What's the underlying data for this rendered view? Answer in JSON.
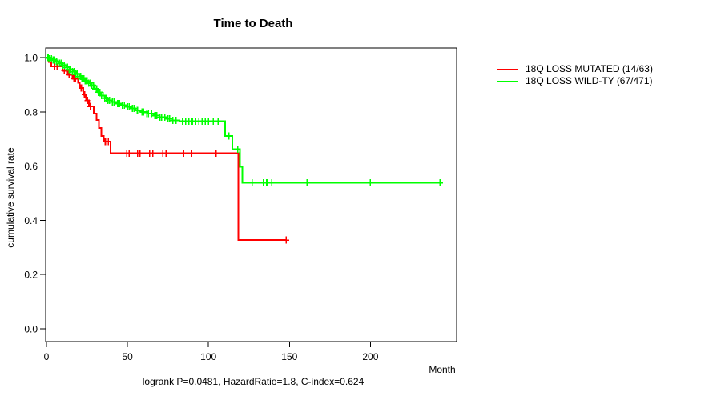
{
  "chart_data": {
    "type": "line",
    "subtype": "kaplan-meier-step",
    "title": "Time to Death",
    "xlabel": "Month",
    "ylabel": "cumulative survival rate",
    "footer": "logrank P=0.0481, HazardRatio=1.8, C-index=0.624",
    "x_ticks": [
      0,
      50,
      100,
      150,
      200
    ],
    "y_ticks": [
      "0.0",
      "0.2",
      "0.4",
      "0.6",
      "0.8",
      "1.0"
    ],
    "xlim": [
      0,
      253
    ],
    "ylim": [
      0.0,
      1.0
    ],
    "grid": false,
    "legend_position": "right-outside",
    "background": "#ffffff",
    "axis_color": "#000000",
    "series": [
      {
        "name": "18Q LOSS MUTATED (14/63)",
        "color": "#ff0000",
        "events_total": "14/63",
        "steps": [
          [
            0,
            1.0
          ],
          [
            1.5,
            0.984
          ],
          [
            3,
            0.968
          ],
          [
            10,
            0.952
          ],
          [
            13,
            0.937
          ],
          [
            16,
            0.922
          ],
          [
            19.5,
            0.907
          ],
          [
            20.5,
            0.888
          ],
          [
            22.8,
            0.863
          ],
          [
            24.6,
            0.842
          ],
          [
            26.2,
            0.82
          ],
          [
            29.3,
            0.794
          ],
          [
            30.8,
            0.77
          ],
          [
            32.4,
            0.74
          ],
          [
            34,
            0.711
          ],
          [
            35.3,
            0.69
          ],
          [
            39.5,
            0.648
          ],
          [
            118.5,
            0.327
          ]
        ],
        "end_month": 148,
        "censor_months": [
          5,
          6.5,
          11,
          14,
          17,
          18,
          21.5,
          23.5,
          25.3,
          27,
          36.3,
          37.3,
          38.3,
          49.5,
          51,
          56.3,
          57.8,
          63.6,
          65.6,
          71.8,
          73.8,
          84.6,
          89.5,
          104.8,
          148
        ]
      },
      {
        "name": "18Q LOSS WILD-TY (67/471)",
        "color": "#00ff00",
        "events_total": "67/471",
        "steps": [
          [
            0,
            1.0
          ],
          [
            2,
            0.996
          ],
          [
            4,
            0.991
          ],
          [
            6,
            0.985
          ],
          [
            8,
            0.979
          ],
          [
            10,
            0.972
          ],
          [
            12,
            0.964
          ],
          [
            14,
            0.956
          ],
          [
            16,
            0.948
          ],
          [
            18,
            0.939
          ],
          [
            20,
            0.93
          ],
          [
            22,
            0.922
          ],
          [
            24,
            0.914
          ],
          [
            26,
            0.906
          ],
          [
            28,
            0.898
          ],
          [
            30,
            0.885
          ],
          [
            32,
            0.872
          ],
          [
            34,
            0.86
          ],
          [
            36,
            0.85
          ],
          [
            38,
            0.842
          ],
          [
            40,
            0.836
          ],
          [
            43,
            0.83
          ],
          [
            46,
            0.824
          ],
          [
            49,
            0.818
          ],
          [
            52,
            0.812
          ],
          [
            55,
            0.806
          ],
          [
            58,
            0.8
          ],
          [
            62,
            0.793
          ],
          [
            66,
            0.786
          ],
          [
            70,
            0.78
          ],
          [
            74,
            0.774
          ],
          [
            78,
            0.768
          ],
          [
            82,
            0.765
          ],
          [
            110.4,
            0.711
          ],
          [
            114.8,
            0.662
          ],
          [
            119.4,
            0.598
          ],
          [
            121,
            0.538
          ]
        ],
        "end_month": 244.5,
        "censor_months": [
          1,
          2,
          3,
          4,
          5,
          6,
          7,
          8,
          9,
          10,
          11,
          12,
          13,
          14,
          15,
          16,
          17,
          18,
          19,
          20,
          21,
          22,
          23,
          24,
          25,
          26,
          27,
          28,
          29,
          30,
          31,
          32,
          33,
          34,
          35,
          36,
          37,
          38,
          39,
          40,
          41,
          42,
          44,
          45,
          47,
          48,
          50,
          51,
          53,
          54,
          56,
          57,
          59,
          60,
          62,
          63,
          65,
          67,
          68,
          70,
          71,
          73,
          75,
          76,
          78,
          80,
          84,
          86,
          88,
          90,
          92,
          94,
          96,
          98,
          100,
          103,
          106,
          112.5,
          118,
          127,
          134,
          136,
          139,
          161,
          200,
          243
        ]
      }
    ]
  }
}
